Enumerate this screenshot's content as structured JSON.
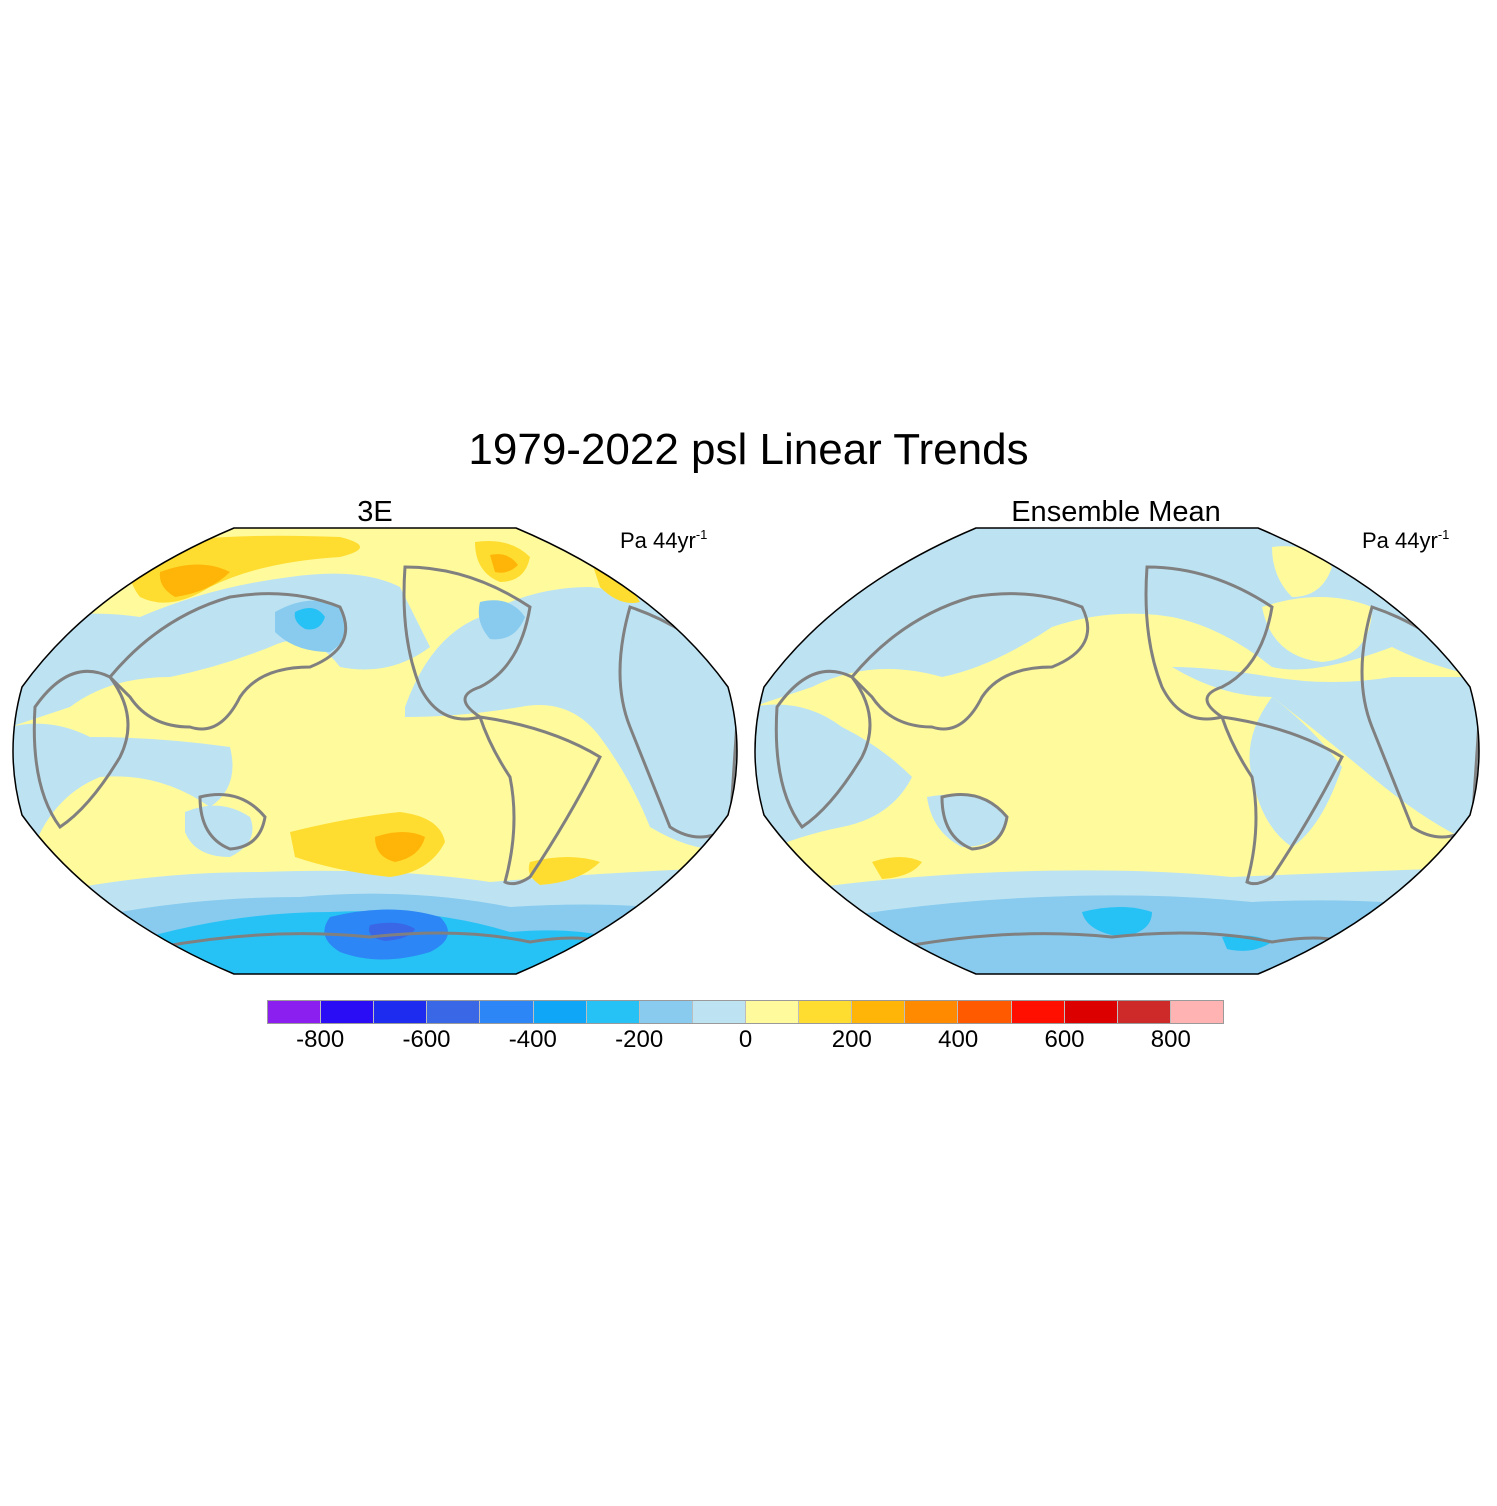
{
  "title": "1979-2022 psl Linear Trends",
  "panels": [
    {
      "title": "3E",
      "units": "Pa 44yr",
      "units_exp": "-1"
    },
    {
      "title": "Ensemble Mean",
      "units": "Pa 44yr",
      "units_exp": "-1"
    }
  ],
  "colorbar": {
    "colors": [
      "#8b1ff0",
      "#2a0cf5",
      "#1e2cf0",
      "#3a67e6",
      "#2c86f5",
      "#10a6f7",
      "#27c2f5",
      "#88cbee",
      "#bde3f3",
      "#fffa9c",
      "#ffdd30",
      "#ffb508",
      "#ff8a00",
      "#ff5a00",
      "#ff0f00",
      "#dc0000",
      "#cf2a2a",
      "#ffb3b3"
    ],
    "tick_labels": [
      "-800",
      "-600",
      "-400",
      "-200",
      "0",
      "200",
      "400",
      "600",
      "800"
    ]
  },
  "colors": {
    "coastline": "#808080",
    "ocean_neutral_pos": "#fffa9c",
    "neutral_neg": "#bde3f3"
  }
}
